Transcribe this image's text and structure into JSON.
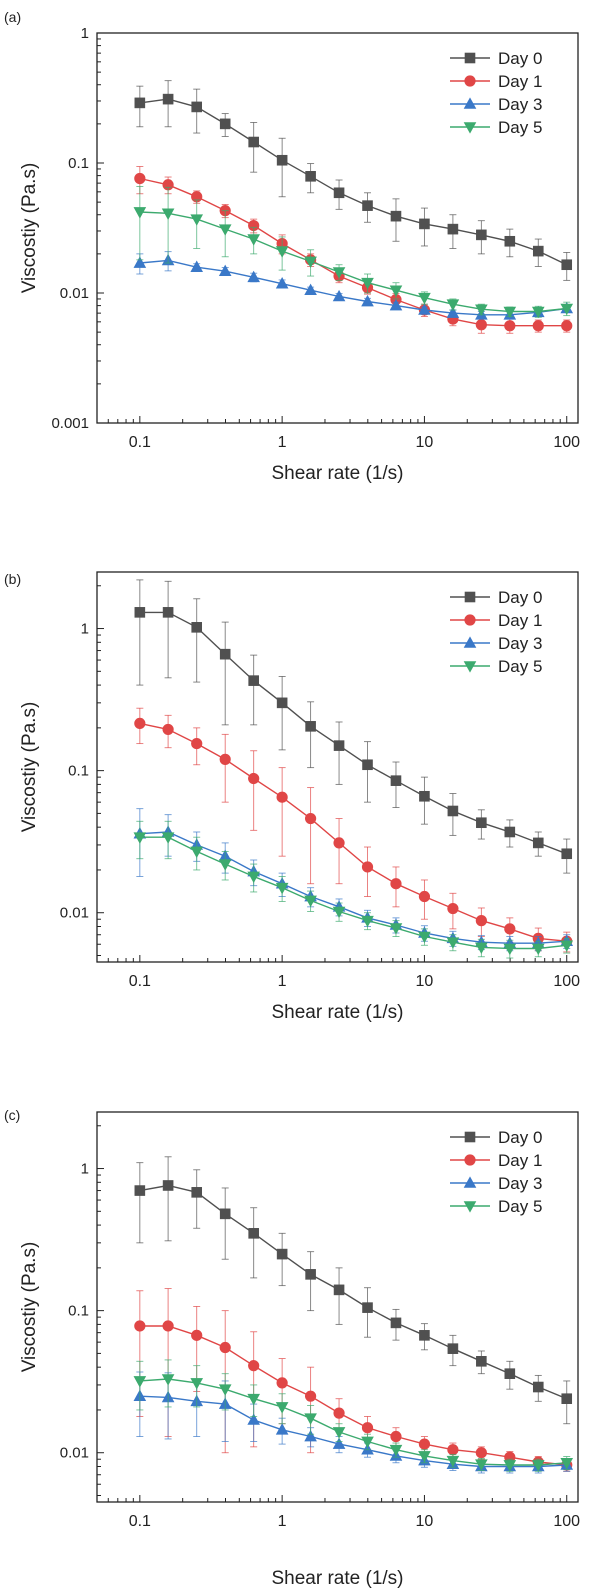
{
  "figure": {
    "panel_count": 3
  },
  "chart_data": [
    {
      "panel_label": "(a)",
      "type": "line",
      "xlabel": "Shear rate (1/s)",
      "ylabel": "Viscostiy (Pa.s)",
      "xscale": "log",
      "yscale": "log",
      "xlim": [
        0.05,
        120
      ],
      "ylim": [
        0.001,
        1
      ],
      "xticks": [
        0.1,
        1,
        10,
        100
      ],
      "xticklabels": [
        "0.1",
        "1",
        "10",
        "100"
      ],
      "yticks": [
        0.001,
        0.01,
        0.1,
        1
      ],
      "yticklabels": [
        "0.001",
        "0.01",
        "0.1",
        "1"
      ],
      "legend": "top-right",
      "x": [
        0.1,
        0.158,
        0.251,
        0.398,
        0.631,
        1.0,
        1.585,
        2.512,
        3.981,
        6.31,
        10.0,
        15.85,
        25.12,
        39.81,
        63.1,
        100.0
      ],
      "series": [
        {
          "name": "Day 0",
          "color": "#505050",
          "marker": "square",
          "values": [
            0.29,
            0.31,
            0.27,
            0.2,
            0.145,
            0.105,
            0.079,
            0.059,
            0.047,
            0.039,
            0.034,
            0.031,
            0.028,
            0.025,
            0.021,
            0.0165
          ],
          "err": [
            0.1,
            0.12,
            0.1,
            0.04,
            0.06,
            0.05,
            0.02,
            0.015,
            0.012,
            0.014,
            0.011,
            0.009,
            0.008,
            0.006,
            0.005,
            0.004
          ]
        },
        {
          "name": "Day 1",
          "color": "#e04646",
          "marker": "circle",
          "values": [
            0.076,
            0.068,
            0.055,
            0.043,
            0.033,
            0.024,
            0.018,
            0.0135,
            0.011,
            0.0089,
            0.0074,
            0.0063,
            0.0057,
            0.0056,
            0.0056,
            0.0056
          ],
          "err": [
            0.018,
            0.01,
            0.006,
            0.005,
            0.004,
            0.004,
            0.002,
            0.0015,
            0.0012,
            0.001,
            0.0008,
            0.0007,
            0.0008,
            0.0007,
            0.0006,
            0.0006
          ]
        },
        {
          "name": "Day 3",
          "color": "#3a78c8",
          "marker": "triangle-up",
          "values": [
            0.017,
            0.0178,
            0.0158,
            0.0147,
            0.0132,
            0.0118,
            0.0105,
            0.0094,
            0.0086,
            0.008,
            0.0074,
            0.007,
            0.0068,
            0.0068,
            0.0071,
            0.0076
          ],
          "err": [
            0.003,
            0.003,
            0.001,
            0.001,
            0.001,
            0.0008,
            0.0006,
            0.0005,
            0.0005,
            0.0005,
            0.0004,
            0.0004,
            0.0004,
            0.0004,
            0.0004,
            0.0005
          ]
        },
        {
          "name": "Day 5",
          "color": "#3caa6e",
          "marker": "triangle-down",
          "values": [
            0.042,
            0.041,
            0.037,
            0.031,
            0.026,
            0.021,
            0.0175,
            0.0145,
            0.012,
            0.0105,
            0.0092,
            0.0082,
            0.0075,
            0.0072,
            0.0072,
            0.0076
          ],
          "err": [
            0.024,
            0.024,
            0.015,
            0.012,
            0.006,
            0.006,
            0.004,
            0.002,
            0.002,
            0.0015,
            0.001,
            0.0008,
            0.0007,
            0.0006,
            0.0007,
            0.0009
          ]
        }
      ]
    },
    {
      "panel_label": "(b)",
      "type": "line",
      "xlabel": "Shear rate (1/s)",
      "ylabel": "Viscostiy (Pa.s)",
      "xscale": "log",
      "yscale": "log",
      "xlim": [
        0.05,
        120
      ],
      "ylim": [
        0.0045,
        2.5
      ],
      "xticks": [
        0.1,
        1,
        10,
        100
      ],
      "xticklabels": [
        "0.1",
        "1",
        "10",
        "100"
      ],
      "yticks": [
        0.01,
        0.1,
        1
      ],
      "yticklabels": [
        "0.01",
        "0.1",
        "1"
      ],
      "legend": "top-right",
      "x": [
        0.1,
        0.158,
        0.251,
        0.398,
        0.631,
        1.0,
        1.585,
        2.512,
        3.981,
        6.31,
        10.0,
        15.85,
        25.12,
        39.81,
        63.1,
        100.0
      ],
      "series": [
        {
          "name": "Day 0",
          "color": "#505050",
          "marker": "square",
          "values": [
            1.3,
            1.3,
            1.02,
            0.66,
            0.43,
            0.3,
            0.205,
            0.15,
            0.11,
            0.085,
            0.066,
            0.052,
            0.043,
            0.037,
            0.031,
            0.026
          ],
          "err": [
            0.9,
            0.85,
            0.6,
            0.45,
            0.22,
            0.16,
            0.1,
            0.07,
            0.05,
            0.03,
            0.024,
            0.017,
            0.01,
            0.008,
            0.006,
            0.007
          ]
        },
        {
          "name": "Day 1",
          "color": "#e04646",
          "marker": "circle",
          "values": [
            0.215,
            0.195,
            0.155,
            0.12,
            0.088,
            0.065,
            0.046,
            0.031,
            0.021,
            0.016,
            0.013,
            0.0107,
            0.0088,
            0.0077,
            0.0066,
            0.0063
          ],
          "err": [
            0.06,
            0.05,
            0.045,
            0.06,
            0.05,
            0.04,
            0.03,
            0.015,
            0.008,
            0.005,
            0.004,
            0.003,
            0.002,
            0.0015,
            0.0012,
            0.001
          ]
        },
        {
          "name": "Day 3",
          "color": "#3a78c8",
          "marker": "triangle-up",
          "values": [
            0.036,
            0.037,
            0.03,
            0.025,
            0.0195,
            0.016,
            0.013,
            0.011,
            0.0092,
            0.0082,
            0.0072,
            0.0066,
            0.0062,
            0.0061,
            0.0061,
            0.0063
          ],
          "err": [
            0.018,
            0.012,
            0.007,
            0.006,
            0.004,
            0.003,
            0.002,
            0.0015,
            0.0012,
            0.001,
            0.0009,
            0.0008,
            0.0007,
            0.0007,
            0.0007,
            0.0007
          ]
        },
        {
          "name": "Day 5",
          "color": "#3caa6e",
          "marker": "triangle-down",
          "values": [
            0.034,
            0.034,
            0.027,
            0.022,
            0.018,
            0.015,
            0.0122,
            0.0102,
            0.0088,
            0.0078,
            0.0068,
            0.0062,
            0.0057,
            0.0056,
            0.0056,
            0.0059
          ],
          "err": [
            0.01,
            0.01,
            0.007,
            0.005,
            0.004,
            0.003,
            0.002,
            0.0015,
            0.0012,
            0.001,
            0.0009,
            0.0008,
            0.0008,
            0.0008,
            0.0007,
            0.0007
          ]
        }
      ]
    },
    {
      "panel_label": "(c)",
      "type": "line",
      "xlabel": "Shear rate (1/s)",
      "ylabel": "Viscostiy (Pa.s)",
      "xscale": "log",
      "yscale": "log",
      "xlim": [
        0.05,
        120
      ],
      "ylim": [
        0.0045,
        2.5
      ],
      "xticks": [
        0.1,
        1,
        10,
        100
      ],
      "xticklabels": [
        "0.1",
        "1",
        "10",
        "100"
      ],
      "yticks": [
        0.01,
        0.1,
        1
      ],
      "yticklabels": [
        "0.01",
        "0.1",
        "1"
      ],
      "legend": "top-right",
      "x": [
        0.1,
        0.158,
        0.251,
        0.398,
        0.631,
        1.0,
        1.585,
        2.512,
        3.981,
        6.31,
        10.0,
        15.85,
        25.12,
        39.81,
        63.1,
        100.0
      ],
      "series": [
        {
          "name": "Day 0",
          "color": "#505050",
          "marker": "square",
          "values": [
            0.7,
            0.76,
            0.68,
            0.48,
            0.35,
            0.25,
            0.18,
            0.14,
            0.105,
            0.082,
            0.067,
            0.054,
            0.044,
            0.036,
            0.029,
            0.024
          ],
          "err": [
            0.4,
            0.45,
            0.3,
            0.25,
            0.18,
            0.1,
            0.08,
            0.06,
            0.04,
            0.02,
            0.014,
            0.013,
            0.008,
            0.008,
            0.006,
            0.008
          ]
        },
        {
          "name": "Day 1",
          "color": "#e04646",
          "marker": "circle",
          "values": [
            0.078,
            0.078,
            0.067,
            0.055,
            0.041,
            0.031,
            0.025,
            0.019,
            0.015,
            0.013,
            0.0115,
            0.0105,
            0.01,
            0.0093,
            0.0086,
            0.0082
          ],
          "err": [
            0.06,
            0.065,
            0.04,
            0.045,
            0.03,
            0.015,
            0.015,
            0.005,
            0.003,
            0.002,
            0.0015,
            0.0012,
            0.001,
            0.0009,
            0.0008,
            0.0008
          ]
        },
        {
          "name": "Day 3",
          "color": "#3a78c8",
          "marker": "triangle-up",
          "values": [
            0.025,
            0.0245,
            0.023,
            0.022,
            0.017,
            0.0145,
            0.013,
            0.0115,
            0.0105,
            0.0095,
            0.0088,
            0.0083,
            0.008,
            0.008,
            0.008,
            0.0082
          ],
          "err": [
            0.012,
            0.012,
            0.01,
            0.01,
            0.005,
            0.003,
            0.002,
            0.0015,
            0.0012,
            0.001,
            0.0009,
            0.0008,
            0.0008,
            0.0008,
            0.0008,
            0.0008
          ]
        },
        {
          "name": "Day 5",
          "color": "#3caa6e",
          "marker": "triangle-down",
          "values": [
            0.032,
            0.033,
            0.031,
            0.028,
            0.024,
            0.021,
            0.0175,
            0.014,
            0.012,
            0.0105,
            0.0095,
            0.0088,
            0.0083,
            0.0082,
            0.0082,
            0.0085
          ],
          "err": [
            0.012,
            0.012,
            0.01,
            0.008,
            0.006,
            0.005,
            0.004,
            0.002,
            0.0015,
            0.0012,
            0.001,
            0.0009,
            0.0008,
            0.0008,
            0.0008,
            0.0009
          ]
        }
      ]
    }
  ]
}
